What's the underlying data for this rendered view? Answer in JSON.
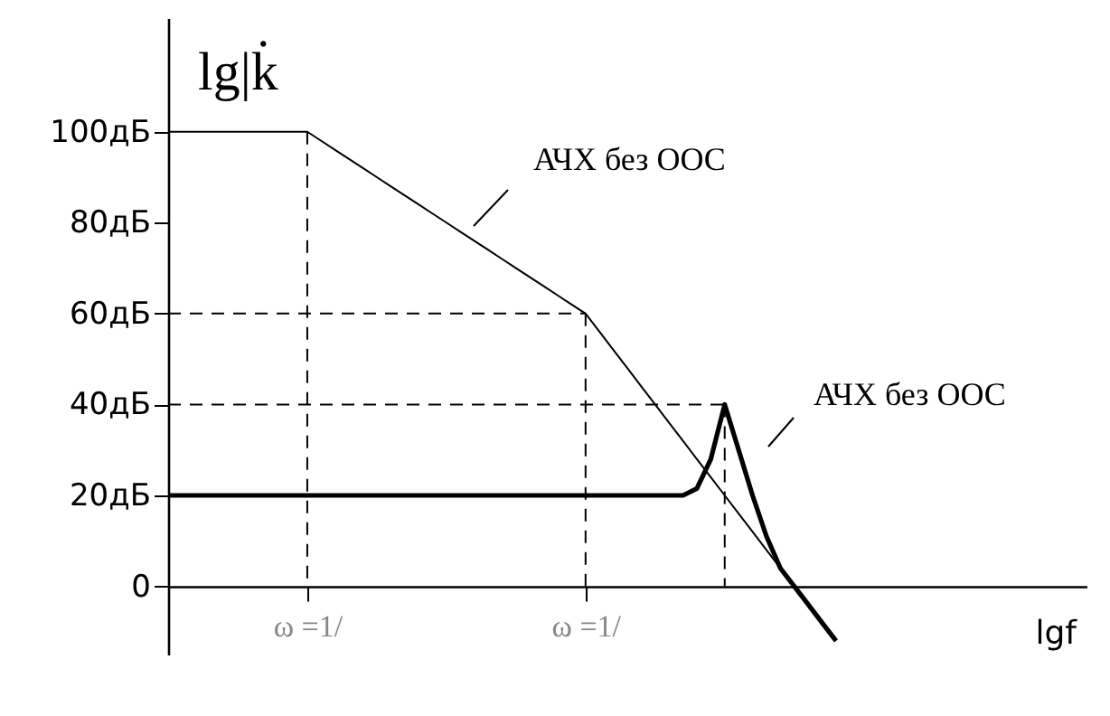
{
  "chart_data": {
    "type": "line",
    "xlabel": "lgf",
    "ylabel": "lg|k̇",
    "ylim": [
      -15,
      125
    ],
    "grid": false,
    "yticks": [
      {
        "value": 0,
        "label": "0"
      },
      {
        "value": 20,
        "label": "20дБ"
      },
      {
        "value": 40,
        "label": "40дБ"
      },
      {
        "value": 60,
        "label": "60дБ"
      },
      {
        "value": 80,
        "label": "80дБ"
      },
      {
        "value": 100,
        "label": "100дБ"
      }
    ],
    "categories": [
      null,
      null,
      null,
      null,
      null,
      null,
      null,
      null,
      null,
      null,
      "ω =1/",
      null,
      null,
      null,
      null,
      null,
      null,
      null,
      null,
      null,
      null,
      null,
      null,
      null,
      null,
      null,
      null,
      null,
      null,
      null,
      "ω =1/",
      null,
      null,
      null,
      null,
      null,
      null,
      null,
      null,
      null,
      null,
      null,
      null,
      null,
      null,
      null,
      null,
      null,
      null,
      null,
      null,
      null,
      null,
      null,
      null,
      null,
      null,
      null,
      null,
      null,
      null,
      null,
      null,
      null,
      null,
      null,
      null
    ],
    "series": [
      {
        "color": "#000000",
        "line_style": "solid",
        "values": [
          100,
          100,
          100,
          100,
          100,
          100,
          100,
          100,
          100,
          100,
          100,
          98,
          96,
          94,
          92,
          90,
          88,
          86,
          84,
          82,
          80,
          78,
          76,
          74,
          72,
          70,
          68,
          66,
          64,
          62,
          60,
          56,
          52,
          48,
          44,
          40,
          36,
          32,
          28,
          24,
          20,
          16,
          12,
          8,
          4,
          0,
          -4,
          -8,
          -12,
          null,
          null,
          null,
          null,
          null,
          null,
          null,
          null,
          null,
          null,
          null,
          null,
          null,
          null,
          null,
          null,
          null,
          null
        ]
      },
      {
        "color": "#000000",
        "line_style": "solid",
        "values": [
          20,
          20,
          20,
          20,
          20,
          20,
          20,
          20,
          20,
          20,
          20,
          20,
          20,
          20,
          20,
          20,
          20,
          20,
          20,
          20,
          20,
          20,
          20,
          20,
          20,
          20,
          20,
          20,
          20,
          20,
          20,
          20,
          20,
          20,
          20,
          20,
          20,
          20,
          21.5,
          28,
          40,
          30,
          20,
          11,
          4,
          0,
          -4,
          -8,
          -12,
          null,
          null,
          null,
          null,
          null,
          null,
          null,
          null,
          null,
          null,
          null,
          null,
          null,
          null,
          null,
          null,
          null,
          null
        ]
      },
      {
        "color": "#000000",
        "line_style": "dashed",
        "values": [
          60,
          60,
          60,
          60,
          60,
          60,
          60,
          60,
          60,
          60,
          60,
          60,
          60,
          60,
          60,
          60,
          60,
          60,
          60,
          60,
          60,
          60,
          60,
          60,
          60,
          60,
          60,
          60,
          60,
          60,
          60,
          null,
          null,
          null,
          null,
          null,
          null,
          null,
          null,
          null,
          null,
          null,
          null,
          null,
          null,
          null,
          null,
          null,
          null,
          null,
          null,
          null,
          null,
          null,
          null,
          null,
          null,
          null,
          null,
          null,
          null,
          null,
          null,
          null,
          null,
          null,
          null
        ]
      },
      {
        "color": "#000000",
        "line_style": "dashed",
        "values": [
          40,
          40,
          40,
          40,
          40,
          40,
          40,
          40,
          40,
          40,
          40,
          40,
          40,
          40,
          40,
          40,
          40,
          40,
          40,
          40,
          40,
          40,
          40,
          40,
          40,
          40,
          40,
          40,
          40,
          40,
          40,
          40,
          40,
          40,
          40,
          40,
          40,
          40,
          40,
          40,
          40,
          null,
          null,
          null,
          null,
          null,
          null,
          null,
          null,
          null,
          null,
          null,
          null,
          null,
          null,
          null,
          null,
          null,
          null,
          null,
          null,
          null,
          null,
          null,
          null,
          null,
          null
        ]
      }
    ],
    "annotations": [
      "АЧХ без ООС",
      "АЧХ без ООС"
    ]
  }
}
